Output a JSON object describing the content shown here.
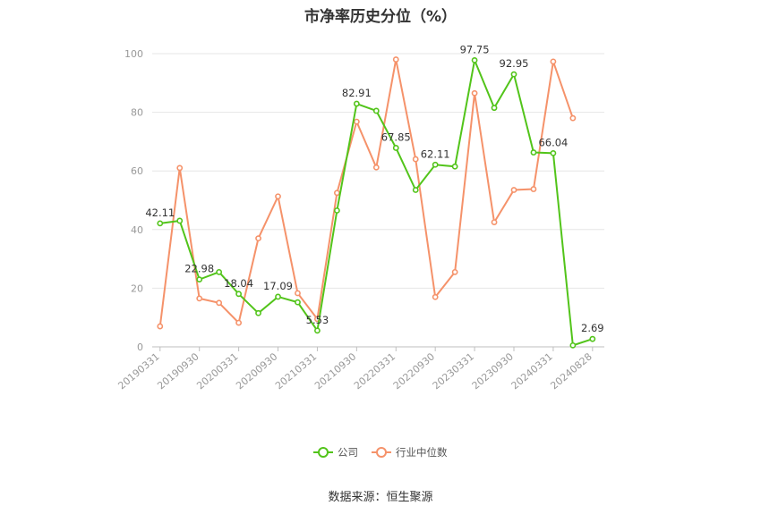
{
  "title": "市净率历史分位（%）",
  "source": "数据来源：恒生聚源",
  "colors": {
    "company": "#52c41a",
    "industry": "#f5926a",
    "grid": "#e6e6e6",
    "axis": "#bfbfbf"
  },
  "chart_data": {
    "type": "line",
    "ylim": [
      0,
      100
    ],
    "yticks": [
      0,
      20,
      40,
      60,
      80,
      100
    ],
    "x_tick_labels": [
      "20190331",
      "20190930",
      "20200331",
      "20200930",
      "20210331",
      "20210930",
      "20220331",
      "20220930",
      "20230331",
      "20230930",
      "20240331",
      "20240828"
    ],
    "x_tick_indices": [
      0,
      2,
      4,
      6,
      8,
      10,
      12,
      14,
      16,
      18,
      20,
      22
    ],
    "grid": true,
    "legend_position": "bottom",
    "series": [
      {
        "name": "公司",
        "values": [
          42.11,
          43.0,
          22.98,
          25.5,
          18.04,
          11.5,
          17.09,
          15.2,
          5.53,
          46.5,
          82.91,
          80.5,
          67.85,
          53.5,
          62.11,
          61.5,
          97.75,
          81.5,
          92.95,
          66.3,
          66.04,
          0.5,
          2.69
        ],
        "data_labels": [
          {
            "index": 0,
            "text": "42.11"
          },
          {
            "index": 2,
            "text": "22.98"
          },
          {
            "index": 4,
            "text": "18.04"
          },
          {
            "index": 6,
            "text": "17.09"
          },
          {
            "index": 8,
            "text": "5.53"
          },
          {
            "index": 10,
            "text": "82.91"
          },
          {
            "index": 12,
            "text": "67.85"
          },
          {
            "index": 14,
            "text": "62.11"
          },
          {
            "index": 16,
            "text": "97.75"
          },
          {
            "index": 18,
            "text": "92.95"
          },
          {
            "index": 20,
            "text": "66.04"
          },
          {
            "index": 22,
            "text": "2.69"
          }
        ]
      },
      {
        "name": "行业中位数",
        "values": [
          7.0,
          61.0,
          16.5,
          15.0,
          8.2,
          37.0,
          51.3,
          18.3,
          9.5,
          52.5,
          76.8,
          61.2,
          98.0,
          64.0,
          17.0,
          25.5,
          86.5,
          42.5,
          53.5,
          53.8,
          97.3,
          78.0,
          null
        ]
      }
    ]
  }
}
